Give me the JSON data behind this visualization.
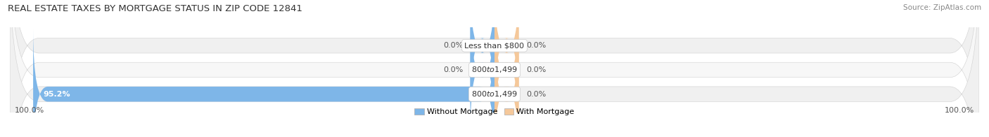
{
  "title": "REAL ESTATE TAXES BY MORTGAGE STATUS IN ZIP CODE 12841",
  "source": "Source: ZipAtlas.com",
  "rows": [
    {
      "label": "Less than $800",
      "without_mortgage": 0.0,
      "with_mortgage": 0.0
    },
    {
      "label": "$800 to $1,499",
      "without_mortgage": 0.0,
      "with_mortgage": 0.0
    },
    {
      "label": "$800 to $1,499",
      "without_mortgage": 95.2,
      "with_mortgage": 0.0
    }
  ],
  "color_without": "#7EB6E8",
  "color_with": "#F5C89A",
  "color_bg_bar": "#EDEDED",
  "color_bg_row_alt": "#F5F5F5",
  "axis_left_label": "100.0%",
  "axis_right_label": "100.0%",
  "legend_without": "Without Mortgage",
  "legend_with": "With Mortgage",
  "xlim_left": -100,
  "xlim_right": 100,
  "bar_height": 0.62,
  "small_bar_width": 5.0,
  "title_fontsize": 9.5,
  "label_fontsize": 8.0,
  "tick_fontsize": 8.0,
  "source_fontsize": 7.5,
  "background_color": "#FFFFFF",
  "row_bg_colors": [
    "#F0F0F0",
    "#F7F7F7",
    "#F0F0F0"
  ]
}
